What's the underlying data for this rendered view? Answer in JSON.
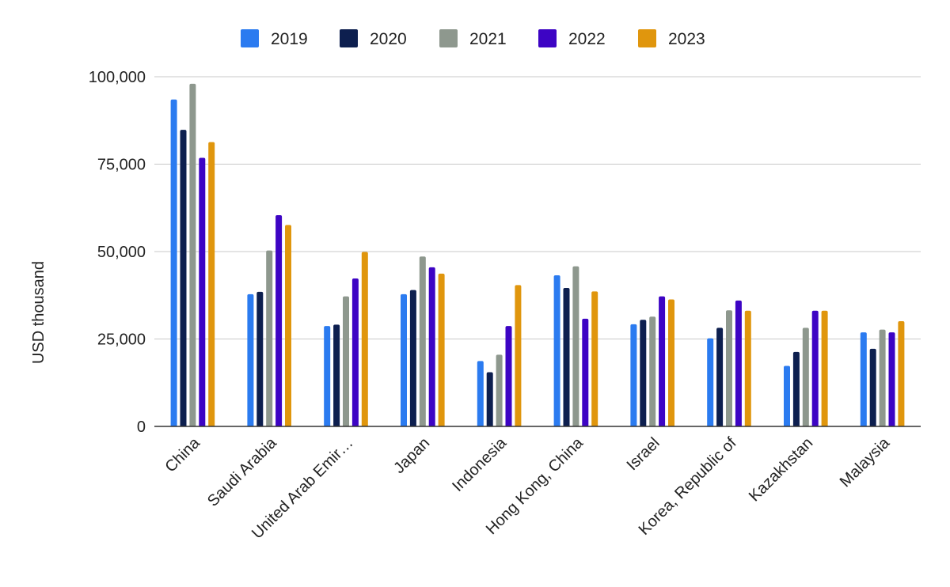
{
  "chart_data": {
    "type": "bar",
    "title": "",
    "xlabel": "",
    "ylabel": "USD thousand",
    "ylim": [
      0,
      100000
    ],
    "yticks": [
      0,
      25000,
      50000,
      75000,
      100000
    ],
    "ytick_labels": [
      "0",
      "25,000",
      "50,000",
      "75,000",
      "100,000"
    ],
    "grid": true,
    "legend_position": "top",
    "categories": [
      "China",
      "Saudi Arabia",
      "United Arab Emir…",
      "Japan",
      "Indonesia",
      "Hong Kong, China",
      "Israel",
      "Korea, Republic of",
      "Kazakhstan",
      "Malaysia"
    ],
    "series": [
      {
        "name": "2019",
        "color": "#2b7bf0",
        "values": [
          93500,
          37800,
          28700,
          37800,
          18700,
          43200,
          29200,
          25200,
          17300,
          26900
        ]
      },
      {
        "name": "2020",
        "color": "#0d1f4f",
        "values": [
          84800,
          38500,
          29100,
          39000,
          15500,
          39600,
          30500,
          28200,
          21300,
          22200
        ]
      },
      {
        "name": "2021",
        "color": "#8e988e",
        "values": [
          98000,
          50300,
          37200,
          48600,
          20500,
          45800,
          31400,
          33200,
          28200,
          27700
        ]
      },
      {
        "name": "2022",
        "color": "#3d04c4",
        "values": [
          76800,
          60400,
          42300,
          45500,
          28700,
          30800,
          37200,
          36000,
          33100,
          26900
        ]
      },
      {
        "name": "2023",
        "color": "#e0960d",
        "values": [
          81300,
          57600,
          49900,
          43700,
          40400,
          38600,
          36300,
          33100,
          33100,
          30100
        ]
      }
    ]
  }
}
